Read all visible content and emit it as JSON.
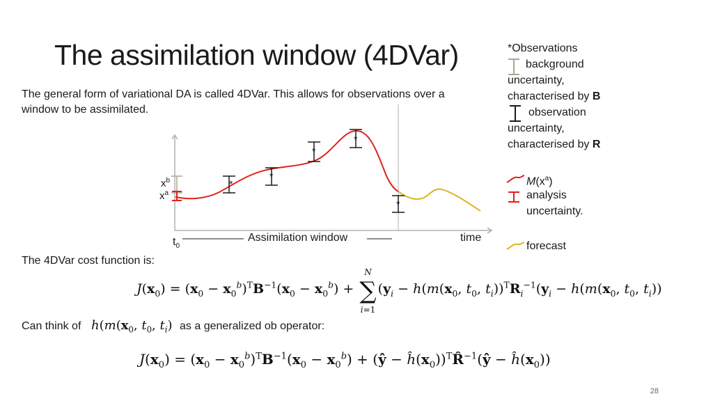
{
  "slide": {
    "title": "The assimilation window (4DVar)",
    "intro": "The general form of variational DA is called 4DVar. This allows for observations over a window to be assimilated.",
    "page_number": "28"
  },
  "legend": {
    "header": "*Observations",
    "background_line1": "background",
    "background_line2": "uncertainty,",
    "background_line3": "characterised by ",
    "background_symbol": "B",
    "observation_line1": "observation",
    "observation_line2": "uncertainty,",
    "observation_line3": "characterised by ",
    "observation_symbol": "R",
    "model_m": "M",
    "model_x": "(x",
    "model_sup": "a",
    "model_close": ")",
    "analysis_line1": "analysis",
    "analysis_line2": "uncertainty.",
    "forecast": "forecast"
  },
  "diagram": {
    "xb_label": "x",
    "xb_sup": "b",
    "xa_label": "x",
    "xa_sup": "a",
    "t0_label": "t",
    "t0_sub": "0",
    "window_label": "Assimilation window",
    "time_label": "time"
  },
  "colors": {
    "analysis": "#e0201c",
    "forecast": "#e0b420",
    "background": "#a8a890",
    "axis": "#b0b0b0",
    "observation": "#1a1a1a"
  },
  "cost": {
    "label": "The 4DVar cost function is:",
    "generalized_prefix": "Can think of",
    "generalized_suffix": "as a generalized ob operator:"
  }
}
